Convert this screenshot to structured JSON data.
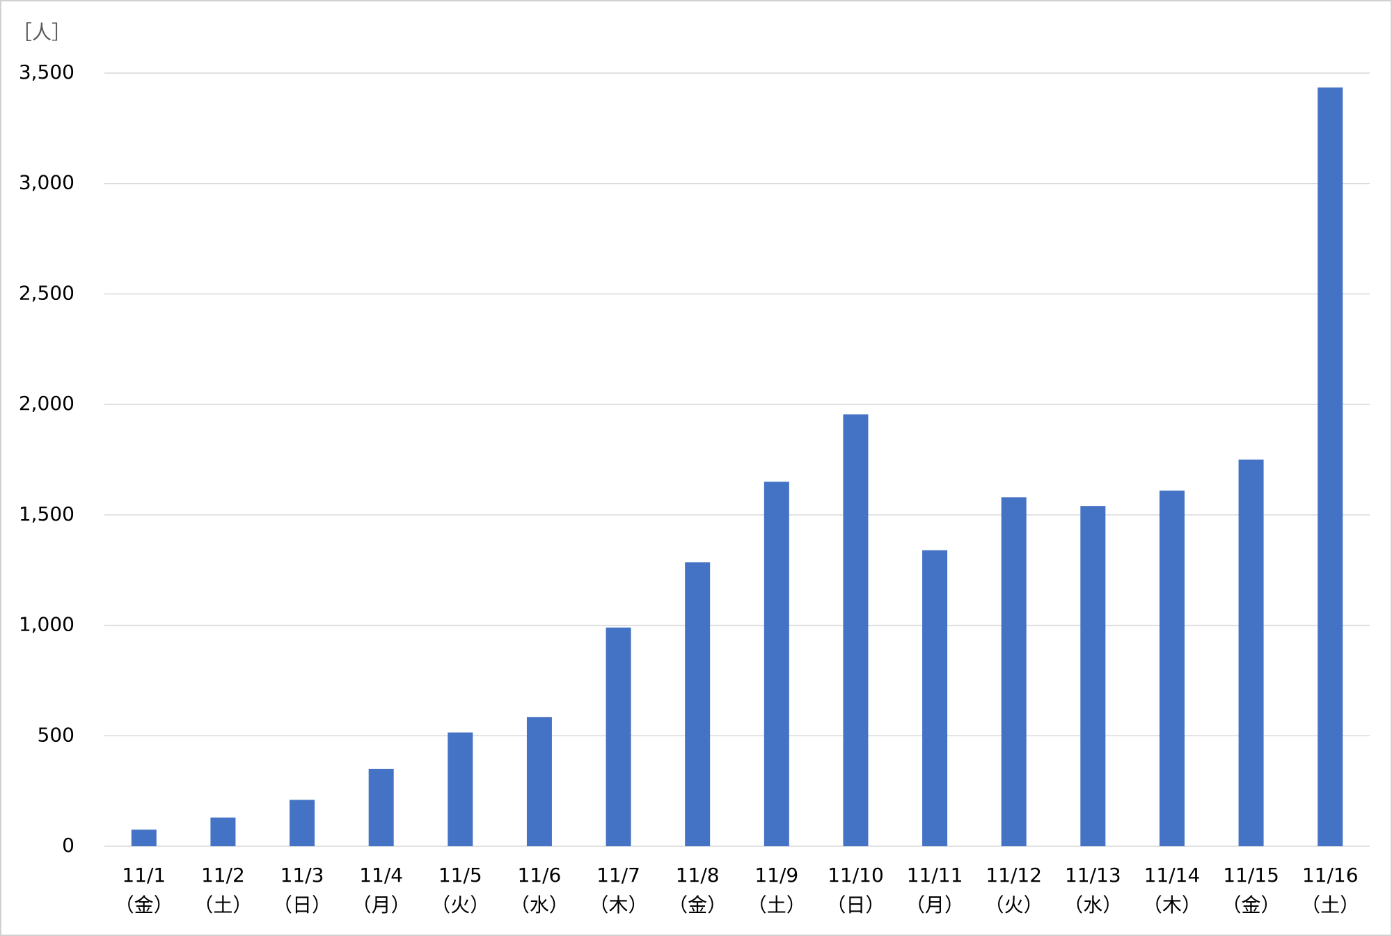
{
  "chart_data": {
    "type": "bar",
    "y_label": "［人］",
    "categories": [
      [
        "11/1",
        "（金）"
      ],
      [
        "11/2",
        "（土）"
      ],
      [
        "11/3",
        "（日）"
      ],
      [
        "11/4",
        "（月）"
      ],
      [
        "11/5",
        "（火）"
      ],
      [
        "11/6",
        "（水）"
      ],
      [
        "11/7",
        "（木）"
      ],
      [
        "11/8",
        "（金）"
      ],
      [
        "11/9",
        "（土）"
      ],
      [
        "11/10",
        "（日）"
      ],
      [
        "11/11",
        "（月）"
      ],
      [
        "11/12",
        "（火）"
      ],
      [
        "11/13",
        "（水）"
      ],
      [
        "11/14",
        "（木）"
      ],
      [
        "11/15",
        "（金）"
      ],
      [
        "11/16",
        "（土）"
      ]
    ],
    "values": [
      75,
      130,
      210,
      350,
      515,
      585,
      990,
      1285,
      1650,
      1955,
      1340,
      1580,
      1540,
      1610,
      1750,
      3435
    ],
    "color": "#4472c4",
    "ylim": [
      0,
      3500
    ],
    "yticks": [
      0,
      500,
      {
        "value": 1000,
        "label": "1,000"
      },
      {
        "value": 1500,
        "label": "1,500"
      },
      {
        "value": 2000,
        "label": "2,000"
      },
      {
        "value": 2500,
        "label": "2,500"
      },
      {
        "value": 3000,
        "label": "3,000"
      },
      {
        "value": 3500,
        "label": "3,500"
      }
    ],
    "grid": true
  }
}
